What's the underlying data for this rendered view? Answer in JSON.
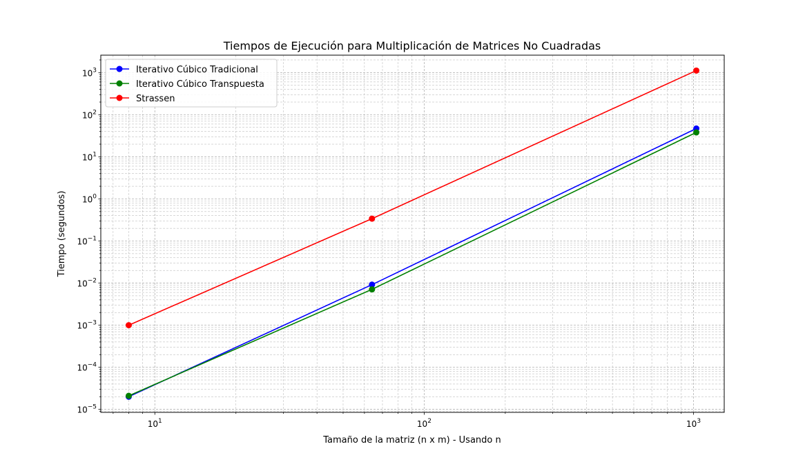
{
  "chart_data": {
    "type": "line",
    "title": "Tiempos de Ejecución para Multiplicación de Matrices No Cuadradas",
    "xlabel": "Tamaño de la matriz (n x m) - Usando n",
    "ylabel": "Tiempo (segundos)",
    "xscale": "log",
    "yscale": "log",
    "xlim": [
      6.3,
      1300
    ],
    "ylim": [
      8.5e-06,
      2600
    ],
    "grid": "major and minor, dashed",
    "legend_position": "top-left",
    "x_ticks": [
      {
        "value": 10,
        "base": "10",
        "exp": "1"
      },
      {
        "value": 100,
        "base": "10",
        "exp": "2"
      },
      {
        "value": 1000,
        "base": "10",
        "exp": "3"
      }
    ],
    "y_ticks": [
      {
        "value": 1e-05,
        "base": "10",
        "exp": "−5"
      },
      {
        "value": 0.0001,
        "base": "10",
        "exp": "−4"
      },
      {
        "value": 0.001,
        "base": "10",
        "exp": "−3"
      },
      {
        "value": 0.01,
        "base": "10",
        "exp": "−2"
      },
      {
        "value": 0.1,
        "base": "10",
        "exp": "−1"
      },
      {
        "value": 1,
        "base": "10",
        "exp": "0"
      },
      {
        "value": 10,
        "base": "10",
        "exp": "1"
      },
      {
        "value": 100,
        "base": "10",
        "exp": "2"
      },
      {
        "value": 1000,
        "base": "10",
        "exp": "3"
      }
    ],
    "x": [
      8,
      64,
      1024
    ],
    "series": [
      {
        "name": "Iterativo Cúbico Tradicional",
        "color": "#0000ff",
        "values": [
          2e-05,
          0.0092,
          47
        ]
      },
      {
        "name": "Iterativo Cúbico Transpuesta",
        "color": "#008000",
        "values": [
          2.1e-05,
          0.0071,
          38
        ]
      },
      {
        "name": "Strassen",
        "color": "#ff0000",
        "values": [
          0.001,
          0.34,
          1120
        ]
      }
    ]
  }
}
